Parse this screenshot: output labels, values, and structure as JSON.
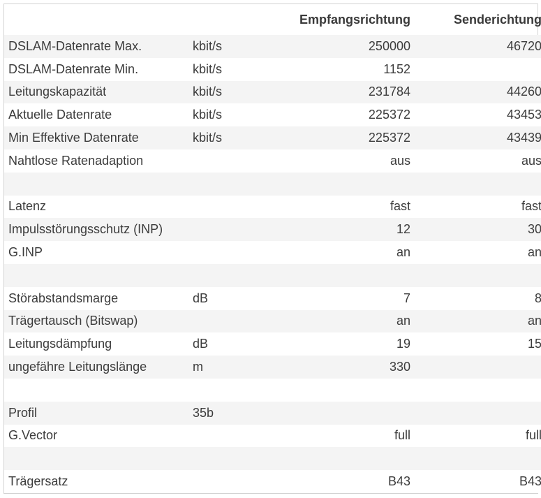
{
  "header": {
    "label": "",
    "unit": "",
    "down": "Empfangsrichtung",
    "up": "Senderichtung"
  },
  "rows": [
    {
      "label": "DSLAM-Datenrate Max.",
      "unit": "kbit/s",
      "down": "250000",
      "up": "46720"
    },
    {
      "label": "DSLAM-Datenrate Min.",
      "unit": "kbit/s",
      "down": "1152",
      "up": ""
    },
    {
      "label": "Leitungskapazität",
      "unit": "kbit/s",
      "down": "231784",
      "up": "44260"
    },
    {
      "label": "Aktuelle Datenrate",
      "unit": "kbit/s",
      "down": "225372",
      "up": "43453"
    },
    {
      "label": "Min Effektive Datenrate",
      "unit": "kbit/s",
      "down": "225372",
      "up": "43439"
    },
    {
      "label": "Nahtlose Ratenadaption",
      "unit": "",
      "down": "aus",
      "up": "aus"
    },
    {
      "label": "",
      "unit": "",
      "down": "",
      "up": ""
    },
    {
      "label": "Latenz",
      "unit": "",
      "down": "fast",
      "up": "fast"
    },
    {
      "label": "Impulsstörungsschutz (INP)",
      "unit": "",
      "down": "12",
      "up": "30"
    },
    {
      "label": "G.INP",
      "unit": "",
      "down": "an",
      "up": "an"
    },
    {
      "label": "",
      "unit": "",
      "down": "",
      "up": ""
    },
    {
      "label": "Störabstandsmarge",
      "unit": "dB",
      "down": "7",
      "up": "8"
    },
    {
      "label": "Trägertausch (Bitswap)",
      "unit": "",
      "down": "an",
      "up": "an"
    },
    {
      "label": "Leitungsdämpfung",
      "unit": "dB",
      "down": "19",
      "up": "15"
    },
    {
      "label": "ungefähre Leitungslänge",
      "unit": "m",
      "down": "330",
      "up": ""
    },
    {
      "label": "",
      "unit": "",
      "down": "",
      "up": ""
    },
    {
      "label": "Profil",
      "unit": "35b",
      "down": "",
      "up": ""
    },
    {
      "label": "G.Vector",
      "unit": "",
      "down": "full",
      "up": "full"
    },
    {
      "label": "",
      "unit": "",
      "down": "",
      "up": ""
    },
    {
      "label": "Trägersatz",
      "unit": "",
      "down": "B43",
      "up": "B43"
    }
  ]
}
